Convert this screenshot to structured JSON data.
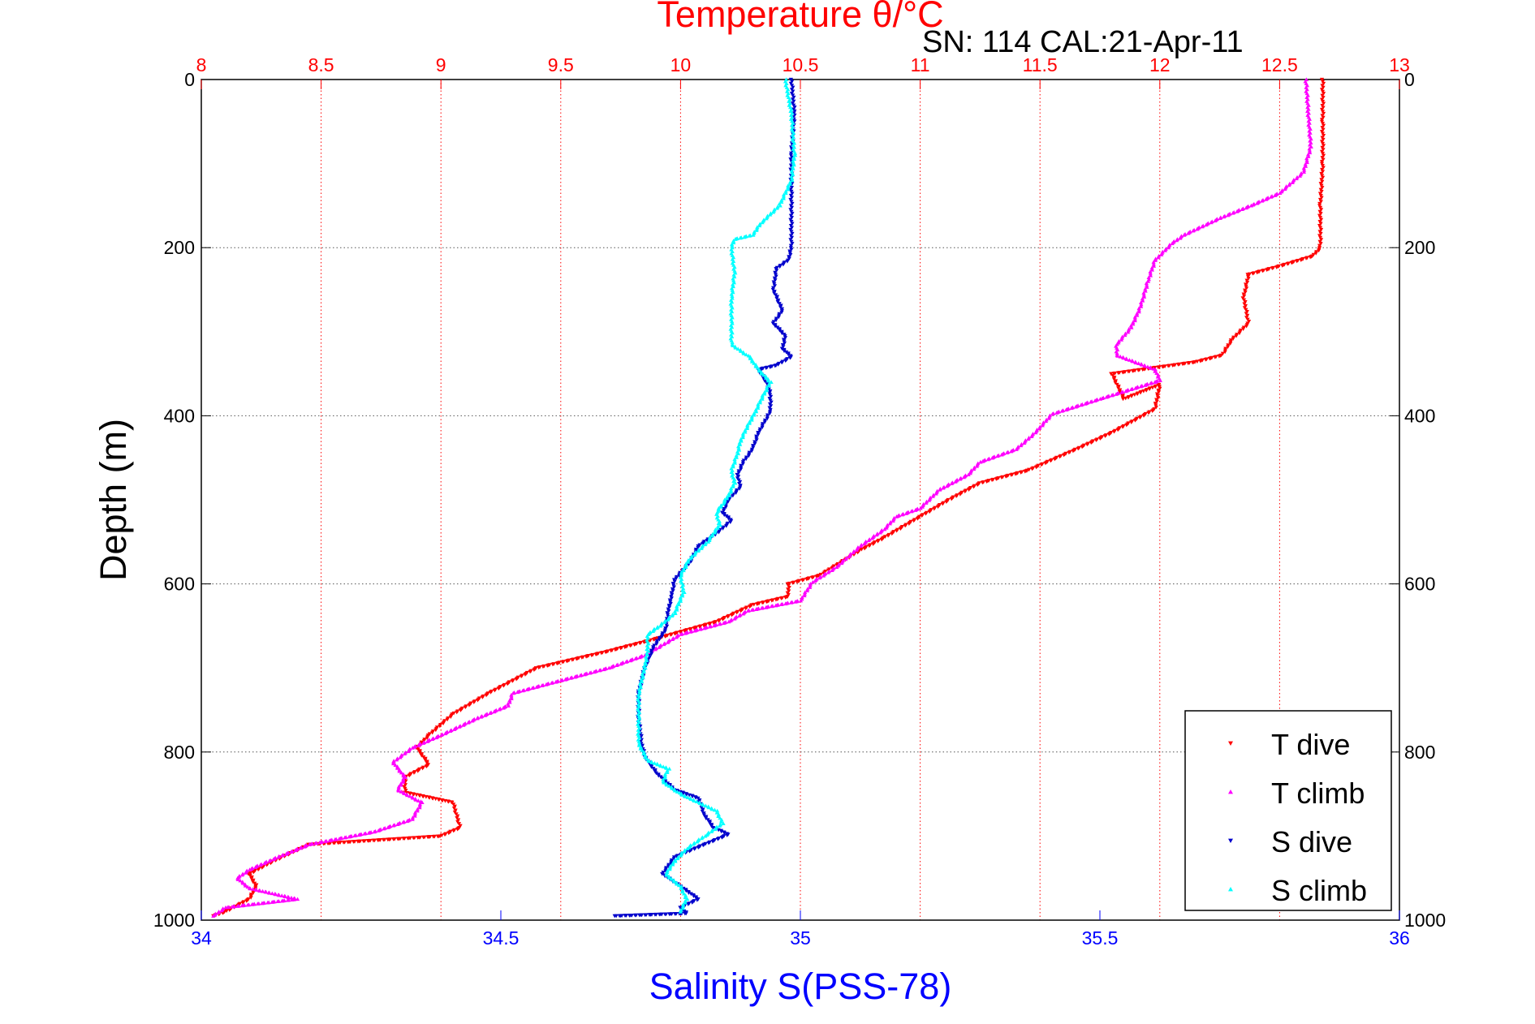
{
  "chart_data": {
    "type": "scatter",
    "title": "SN: 114  CAL:21-Apr-11",
    "top_axis": {
      "label": "Temperature θ/°C",
      "range": [
        8,
        13
      ],
      "ticks": [
        8,
        8.5,
        9,
        9.5,
        10,
        10.5,
        11,
        11.5,
        12,
        12.5,
        13
      ],
      "tick_labels": [
        "8",
        "8.5",
        "9",
        "9.5",
        "10",
        "10.5",
        "11",
        "11.5",
        "12",
        "12.5",
        "13"
      ],
      "color": "#ff0000",
      "grid": true
    },
    "bottom_axis": {
      "label": "Salinity S(PSS-78)",
      "range": [
        34,
        36
      ],
      "ticks": [
        34,
        34.5,
        35,
        35.5,
        36
      ],
      "tick_labels": [
        "34",
        "34.5",
        "35",
        "35.5",
        "36"
      ],
      "color": "#0000ff"
    },
    "y_axis": {
      "label": "Depth (m)",
      "range": [
        0,
        1000
      ],
      "reversed": true,
      "ticks": [
        0,
        200,
        400,
        600,
        800,
        1000
      ],
      "tick_labels": [
        "0",
        "200",
        "400",
        "600",
        "800",
        "1000"
      ],
      "grid": true
    },
    "legend": {
      "position": "bottom-right",
      "entries": [
        "T dive",
        "T climb",
        "S dive",
        "S climb"
      ]
    },
    "series": [
      {
        "name": "T dive",
        "variable": "temperature",
        "color": "#ff0000",
        "marker": "triangle-down",
        "points": [
          [
            12.68,
            0
          ],
          [
            12.68,
            50
          ],
          [
            12.68,
            100
          ],
          [
            12.67,
            150
          ],
          [
            12.67,
            200
          ],
          [
            12.64,
            210
          ],
          [
            12.5,
            222
          ],
          [
            12.37,
            232
          ],
          [
            12.35,
            260
          ],
          [
            12.37,
            290
          ],
          [
            12.3,
            310
          ],
          [
            12.26,
            328
          ],
          [
            12.15,
            336
          ],
          [
            11.8,
            350
          ],
          [
            11.85,
            380
          ],
          [
            12.0,
            363
          ],
          [
            11.98,
            392
          ],
          [
            11.8,
            420
          ],
          [
            11.65,
            440
          ],
          [
            11.45,
            465
          ],
          [
            11.25,
            480
          ],
          [
            11.12,
            500
          ],
          [
            11.0,
            520
          ],
          [
            10.85,
            545
          ],
          [
            10.75,
            560
          ],
          [
            10.58,
            590
          ],
          [
            10.45,
            600
          ],
          [
            10.45,
            615
          ],
          [
            10.3,
            625
          ],
          [
            10.15,
            645
          ],
          [
            9.9,
            665
          ],
          [
            9.7,
            680
          ],
          [
            9.4,
            700
          ],
          [
            9.2,
            730
          ],
          [
            9.05,
            755
          ],
          [
            8.95,
            780
          ],
          [
            8.9,
            795
          ],
          [
            8.95,
            815
          ],
          [
            8.85,
            830
          ],
          [
            8.85,
            848
          ],
          [
            9.05,
            860
          ],
          [
            9.08,
            890
          ],
          [
            9.0,
            900
          ],
          [
            8.45,
            910
          ],
          [
            8.3,
            930
          ],
          [
            8.2,
            945
          ],
          [
            8.23,
            960
          ],
          [
            8.2,
            975
          ],
          [
            8.1,
            990
          ],
          [
            8.05,
            995
          ]
        ]
      },
      {
        "name": "T climb",
        "variable": "temperature",
        "color": "#ff00ff",
        "marker": "triangle-up",
        "points": [
          [
            12.61,
            0
          ],
          [
            12.62,
            40
          ],
          [
            12.63,
            80
          ],
          [
            12.6,
            110
          ],
          [
            12.5,
            135
          ],
          [
            12.38,
            150
          ],
          [
            12.25,
            165
          ],
          [
            12.1,
            185
          ],
          [
            12.05,
            195
          ],
          [
            11.98,
            215
          ],
          [
            11.95,
            240
          ],
          [
            11.92,
            270
          ],
          [
            11.88,
            295
          ],
          [
            11.82,
            315
          ],
          [
            11.82,
            328
          ],
          [
            11.98,
            345
          ],
          [
            12.0,
            358
          ],
          [
            11.75,
            380
          ],
          [
            11.55,
            398
          ],
          [
            11.48,
            420
          ],
          [
            11.4,
            440
          ],
          [
            11.25,
            455
          ],
          [
            11.2,
            470
          ],
          [
            11.08,
            488
          ],
          [
            11.0,
            510
          ],
          [
            10.9,
            520
          ],
          [
            10.85,
            535
          ],
          [
            10.75,
            555
          ],
          [
            10.65,
            580
          ],
          [
            10.55,
            598
          ],
          [
            10.5,
            620
          ],
          [
            10.28,
            632
          ],
          [
            10.2,
            645
          ],
          [
            10.0,
            660
          ],
          [
            9.85,
            685
          ],
          [
            9.7,
            700
          ],
          [
            9.5,
            715
          ],
          [
            9.3,
            730
          ],
          [
            9.28,
            745
          ],
          [
            9.15,
            760
          ],
          [
            9.0,
            780
          ],
          [
            8.88,
            795
          ],
          [
            8.8,
            812
          ],
          [
            8.85,
            830
          ],
          [
            8.82,
            845
          ],
          [
            8.92,
            860
          ],
          [
            8.88,
            880
          ],
          [
            8.72,
            895
          ],
          [
            8.45,
            910
          ],
          [
            8.32,
            925
          ],
          [
            8.2,
            940
          ],
          [
            8.15,
            950
          ],
          [
            8.2,
            962
          ],
          [
            8.4,
            975
          ],
          [
            8.1,
            985
          ],
          [
            8.05,
            995
          ]
        ]
      },
      {
        "name": "S dive",
        "variable": "salinity",
        "color": "#0000cc",
        "marker": "triangle-down",
        "points": [
          [
            34.985,
            0
          ],
          [
            34.99,
            40
          ],
          [
            34.985,
            90
          ],
          [
            34.985,
            150
          ],
          [
            34.985,
            200
          ],
          [
            34.98,
            215
          ],
          [
            34.96,
            225
          ],
          [
            34.955,
            250
          ],
          [
            34.97,
            275
          ],
          [
            34.955,
            290
          ],
          [
            34.975,
            305
          ],
          [
            34.97,
            320
          ],
          [
            34.985,
            330
          ],
          [
            34.96,
            340
          ],
          [
            34.93,
            345
          ],
          [
            34.945,
            362
          ],
          [
            34.95,
            375
          ],
          [
            34.95,
            395
          ],
          [
            34.93,
            420
          ],
          [
            34.92,
            440
          ],
          [
            34.905,
            455
          ],
          [
            34.895,
            470
          ],
          [
            34.9,
            485
          ],
          [
            34.88,
            500
          ],
          [
            34.87,
            515
          ],
          [
            34.885,
            525
          ],
          [
            34.86,
            540
          ],
          [
            34.83,
            555
          ],
          [
            34.815,
            575
          ],
          [
            34.79,
            595
          ],
          [
            34.785,
            615
          ],
          [
            34.78,
            630
          ],
          [
            34.775,
            655
          ],
          [
            34.755,
            675
          ],
          [
            34.74,
            700
          ],
          [
            34.73,
            730
          ],
          [
            34.73,
            760
          ],
          [
            34.735,
            790
          ],
          [
            34.74,
            805
          ],
          [
            34.76,
            825
          ],
          [
            34.79,
            845
          ],
          [
            34.83,
            855
          ],
          [
            34.84,
            875
          ],
          [
            34.855,
            890
          ],
          [
            34.88,
            898
          ],
          [
            34.84,
            910
          ],
          [
            34.79,
            925
          ],
          [
            34.77,
            945
          ],
          [
            34.81,
            965
          ],
          [
            34.83,
            975
          ],
          [
            34.8,
            985
          ],
          [
            34.81,
            992
          ],
          [
            34.69,
            995
          ]
        ]
      },
      {
        "name": "S climb",
        "variable": "salinity",
        "color": "#00ffff",
        "marker": "triangle-up",
        "points": [
          [
            34.975,
            0
          ],
          [
            34.985,
            40
          ],
          [
            34.99,
            90
          ],
          [
            34.985,
            120
          ],
          [
            34.965,
            150
          ],
          [
            34.935,
            170
          ],
          [
            34.92,
            185
          ],
          [
            34.89,
            190
          ],
          [
            34.885,
            200
          ],
          [
            34.89,
            230
          ],
          [
            34.885,
            260
          ],
          [
            34.885,
            290
          ],
          [
            34.885,
            315
          ],
          [
            34.915,
            330
          ],
          [
            34.93,
            345
          ],
          [
            34.95,
            360
          ],
          [
            34.935,
            380
          ],
          [
            34.925,
            395
          ],
          [
            34.91,
            415
          ],
          [
            34.9,
            430
          ],
          [
            34.895,
            445
          ],
          [
            34.885,
            465
          ],
          [
            34.89,
            480
          ],
          [
            34.88,
            495
          ],
          [
            34.87,
            505
          ],
          [
            34.86,
            515
          ],
          [
            34.865,
            530
          ],
          [
            34.845,
            550
          ],
          [
            34.815,
            570
          ],
          [
            34.8,
            590
          ],
          [
            34.805,
            610
          ],
          [
            34.79,
            635
          ],
          [
            34.765,
            650
          ],
          [
            34.745,
            660
          ],
          [
            34.745,
            680
          ],
          [
            34.74,
            700
          ],
          [
            34.73,
            730
          ],
          [
            34.73,
            760
          ],
          [
            34.73,
            790
          ],
          [
            34.745,
            810
          ],
          [
            34.78,
            820
          ],
          [
            34.77,
            835
          ],
          [
            34.8,
            850
          ],
          [
            34.83,
            860
          ],
          [
            34.86,
            870
          ],
          [
            34.87,
            885
          ],
          [
            34.84,
            900
          ],
          [
            34.81,
            915
          ],
          [
            34.79,
            930
          ],
          [
            34.775,
            945
          ],
          [
            34.8,
            960
          ],
          [
            34.81,
            975
          ],
          [
            34.8,
            990
          ]
        ]
      }
    ]
  }
}
